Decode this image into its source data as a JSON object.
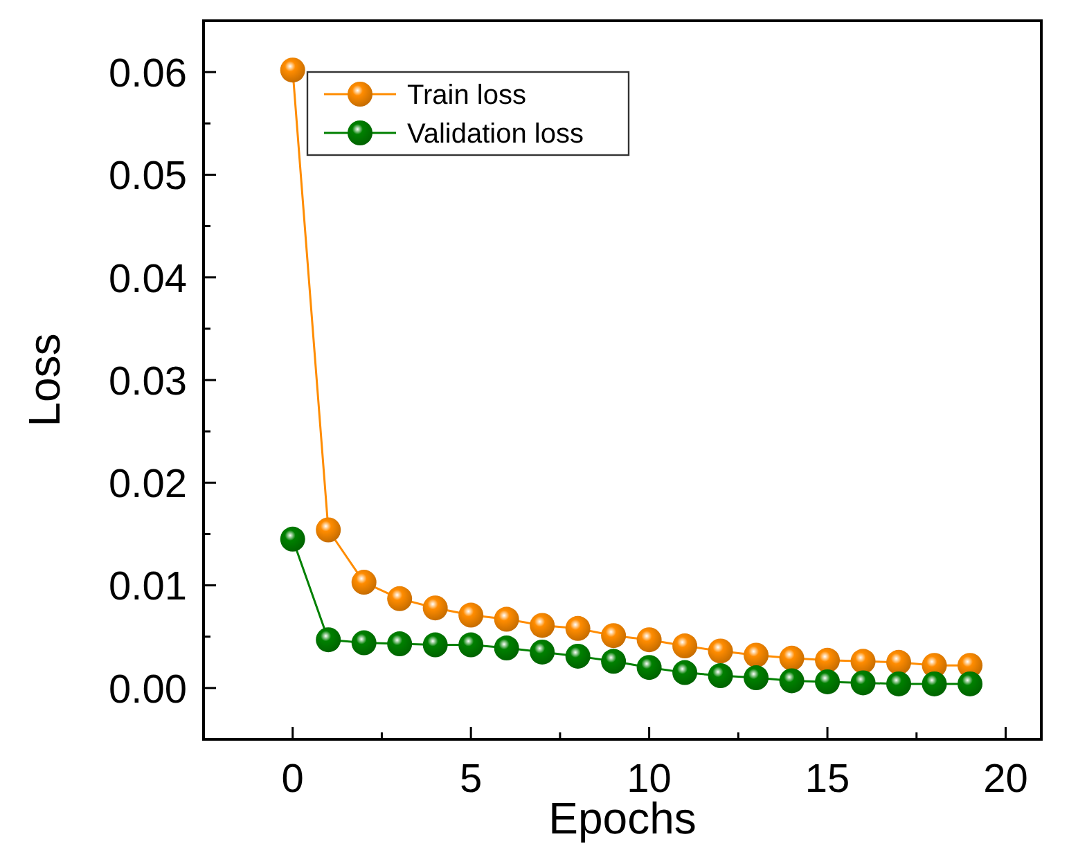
{
  "chart_data": {
    "type": "line",
    "xlabel": "Epochs",
    "ylabel": "Loss",
    "x": [
      0,
      1,
      2,
      3,
      4,
      5,
      6,
      7,
      8,
      9,
      10,
      11,
      12,
      13,
      14,
      15,
      16,
      17,
      18,
      19
    ],
    "series": [
      {
        "name": "Train loss",
        "color": "#ff8c00",
        "values": [
          0.0602,
          0.0154,
          0.0103,
          0.0087,
          0.0078,
          0.0071,
          0.0067,
          0.0061,
          0.0058,
          0.0051,
          0.0047,
          0.0041,
          0.0036,
          0.0032,
          0.0029,
          0.0027,
          0.0026,
          0.0025,
          0.0022,
          0.0022
        ]
      },
      {
        "name": "Validation loss",
        "color": "#008000",
        "values": [
          0.0145,
          0.0047,
          0.0044,
          0.0043,
          0.0042,
          0.0042,
          0.0039,
          0.0035,
          0.0031,
          0.0026,
          0.002,
          0.0015,
          0.0012,
          0.001,
          0.0007,
          0.0006,
          0.0005,
          0.0004,
          0.0004,
          0.0004
        ]
      }
    ],
    "xlim": [
      -2.5,
      21
    ],
    "ylim": [
      -0.005,
      0.065
    ],
    "xticks": [
      0,
      {
        "value": 2.5,
        "label": null
      },
      5,
      {
        "value": 7.5,
        "label": null
      },
      10,
      {
        "value": 12.5,
        "label": null
      },
      15,
      {
        "value": 17.5,
        "label": null
      },
      20
    ],
    "yticks": [
      "0.00",
      {
        "value": 0.005,
        "label": null
      },
      {
        "value": 0.01,
        "label": "0.01"
      },
      {
        "value": 0.015,
        "label": null
      },
      {
        "value": 0.02,
        "label": "0.02"
      },
      {
        "value": 0.025,
        "label": null
      },
      {
        "value": 0.03,
        "label": "0.03"
      },
      {
        "value": 0.035,
        "label": null
      },
      {
        "value": 0.04,
        "label": "0.04"
      },
      {
        "value": 0.045,
        "label": null
      },
      {
        "value": 0.05,
        "label": "0.05"
      },
      {
        "value": 0.055,
        "label": null
      },
      {
        "value": 0.06,
        "label": "0.06"
      }
    ],
    "legend": "top left",
    "marker": "circle",
    "line_style": "solid",
    "grid": false
  }
}
